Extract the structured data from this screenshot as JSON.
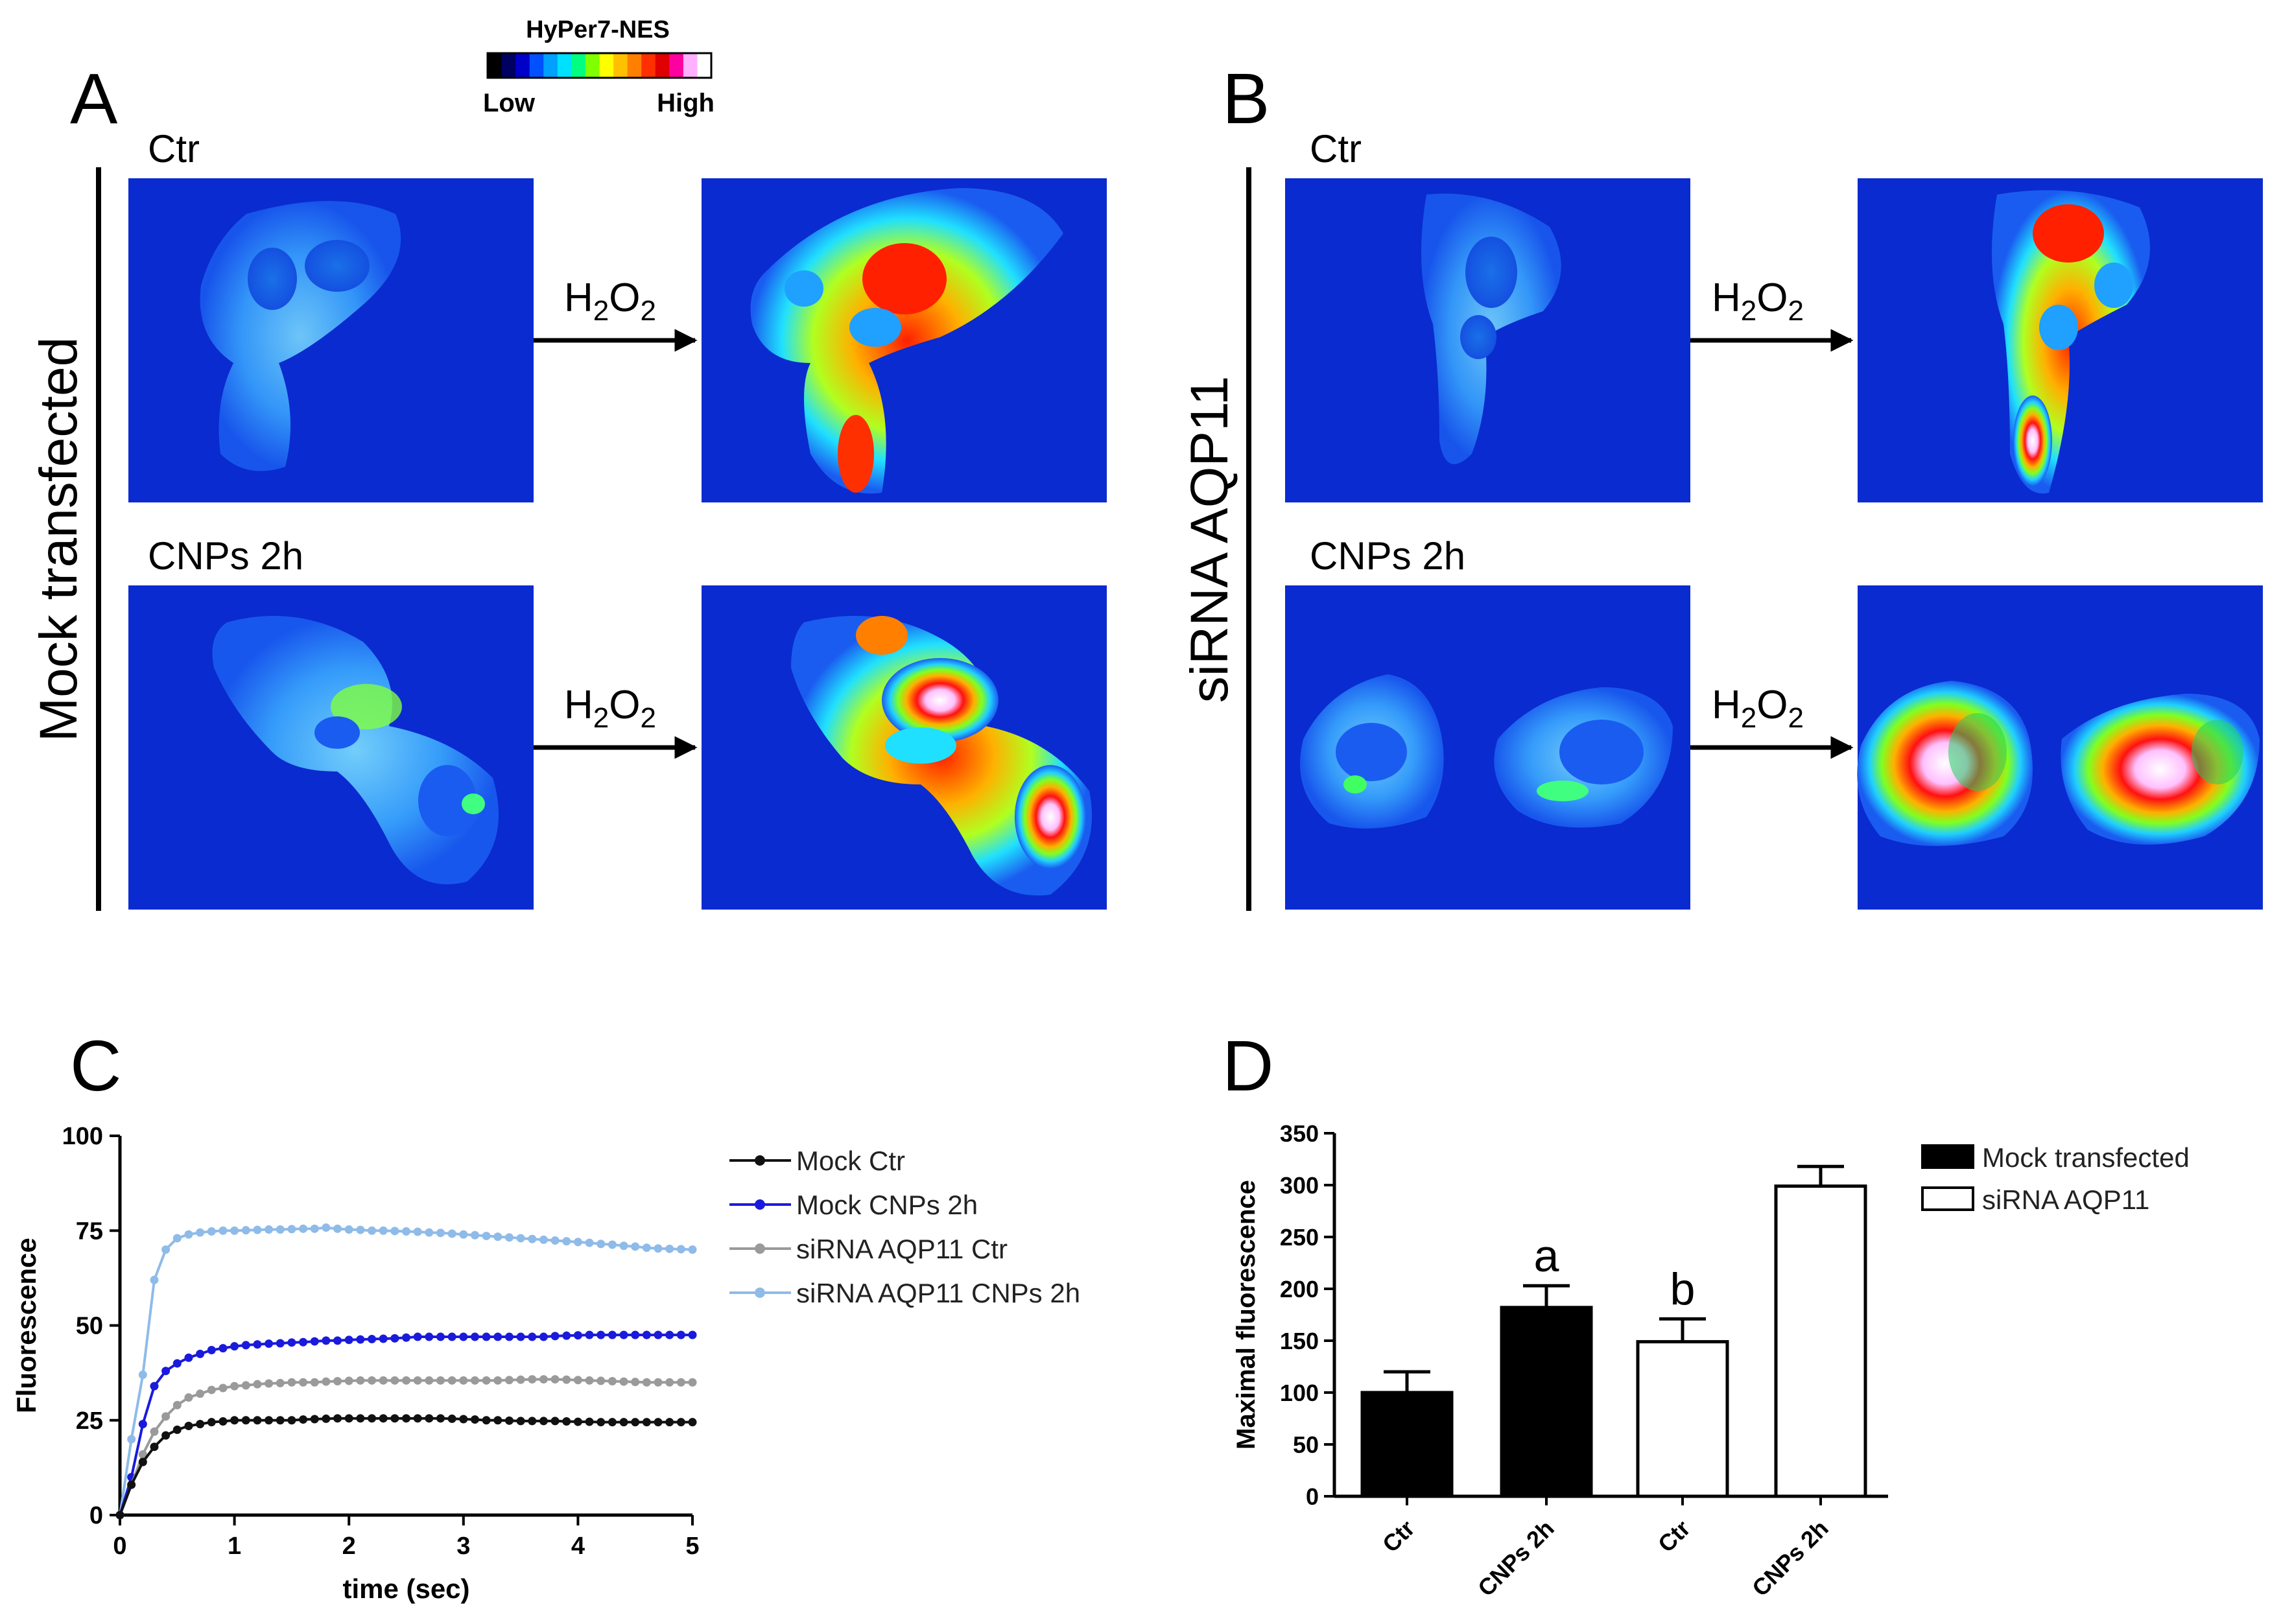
{
  "colorbar": {
    "title": "HyPer7-NES",
    "low": "Low",
    "high": "High",
    "colors": [
      "#000000",
      "#000060",
      "#0000c8",
      "#0050ff",
      "#00a0ff",
      "#00e0ff",
      "#00ff80",
      "#80ff00",
      "#ffff00",
      "#ffc000",
      "#ff8000",
      "#ff3000",
      "#e00000",
      "#ff00a0",
      "#ffb0ff",
      "#ffffff"
    ]
  },
  "panels": {
    "A": {
      "letter": "A",
      "side_label": "Mock transfected"
    },
    "B": {
      "letter": "B",
      "side_label": "siRNA AQP11"
    },
    "C": {
      "letter": "C"
    },
    "D": {
      "letter": "D"
    }
  },
  "rows": {
    "ctr": "Ctr",
    "cnps": "CNPs 2h"
  },
  "arrow_label": {
    "main": "H",
    "sub1": "2",
    "mid": "O",
    "sub2": "2"
  },
  "chart_data": [
    {
      "type": "line",
      "xlabel": "time (sec)",
      "ylabel": "Fluorescence",
      "xlim": [
        0,
        5
      ],
      "ylim": [
        0,
        100
      ],
      "xticks": [
        "0",
        "1",
        "2",
        "3",
        "4",
        "5"
      ],
      "yticks": [
        "0",
        "25",
        "50",
        "75",
        "100"
      ],
      "x": [
        0,
        0.1,
        0.2,
        0.3,
        0.4,
        0.5,
        0.6,
        0.7,
        0.8,
        0.9,
        1.0,
        1.1,
        1.2,
        1.3,
        1.4,
        1.5,
        1.6,
        1.7,
        1.8,
        1.9,
        2.0,
        2.1,
        2.2,
        2.3,
        2.4,
        2.5,
        2.6,
        2.7,
        2.8,
        2.9,
        3.0,
        3.1,
        3.2,
        3.3,
        3.4,
        3.5,
        3.6,
        3.7,
        3.8,
        3.9,
        4.0,
        4.1,
        4.2,
        4.3,
        4.4,
        4.5,
        4.6,
        4.7,
        4.8,
        4.9,
        5.0
      ],
      "series": [
        {
          "name": "Mock Ctr",
          "color": "#111111",
          "values": [
            0,
            8,
            14,
            18,
            21,
            22.5,
            23.5,
            24,
            24.5,
            24.7,
            25,
            25,
            25,
            25,
            25,
            25,
            25.2,
            25.3,
            25.4,
            25.5,
            25.5,
            25.5,
            25.5,
            25.5,
            25.5,
            25.5,
            25.5,
            25.5,
            25.5,
            25.4,
            25.3,
            25.2,
            25,
            25,
            24.9,
            24.8,
            24.8,
            24.8,
            24.8,
            24.7,
            24.6,
            24.6,
            24.5,
            24.5,
            24.5,
            24.5,
            24.5,
            24.5,
            24.5,
            24.5,
            24.5
          ]
        },
        {
          "name": "Mock CNPs 2h",
          "color": "#1a1adc",
          "values": [
            0,
            10,
            24,
            34,
            38,
            40,
            41.5,
            42.5,
            43.5,
            44,
            44.5,
            44.8,
            45,
            45.2,
            45.3,
            45.5,
            45.6,
            45.8,
            46,
            46,
            46.2,
            46.3,
            46.4,
            46.5,
            46.6,
            46.8,
            47,
            47,
            47,
            47,
            47,
            47,
            47,
            47,
            47,
            47,
            47,
            47,
            47.2,
            47.3,
            47.4,
            47.5,
            47.5,
            47.5,
            47.5,
            47.5,
            47.5,
            47.5,
            47.5,
            47.5,
            47.5
          ]
        },
        {
          "name": "siRNA AQP11 Ctr",
          "color": "#9a9a9a",
          "values": [
            0,
            8,
            16,
            22,
            26,
            29,
            31,
            32,
            33,
            33.5,
            34,
            34.2,
            34.5,
            34.7,
            34.8,
            35,
            35,
            35,
            35.2,
            35.3,
            35.4,
            35.5,
            35.5,
            35.5,
            35.5,
            35.5,
            35.5,
            35.5,
            35.5,
            35.5,
            35.5,
            35.5,
            35.5,
            35.5,
            35.6,
            35.7,
            35.8,
            35.8,
            35.8,
            35.7,
            35.6,
            35.5,
            35.4,
            35.3,
            35.2,
            35.1,
            35,
            35,
            35,
            35,
            35
          ]
        },
        {
          "name": "siRNA AQP11 CNPs 2h",
          "color": "#8fbbe8",
          "values": [
            0,
            20,
            37,
            62,
            70,
            73,
            74,
            74.5,
            74.8,
            75,
            75,
            75.1,
            75.2,
            75.3,
            75.3,
            75.4,
            75.5,
            75.5,
            75.8,
            75.5,
            75.3,
            75.2,
            75,
            75,
            74.9,
            74.8,
            74.7,
            74.5,
            74.4,
            74.2,
            74,
            73.8,
            73.6,
            73.4,
            73.2,
            73,
            72.8,
            72.6,
            72.4,
            72.2,
            72,
            71.8,
            71.5,
            71.3,
            71,
            70.8,
            70.5,
            70.3,
            70.2,
            70.1,
            70
          ]
        }
      ]
    },
    {
      "type": "bar",
      "ylabel": "Maximal fluorescence",
      "ylim": [
        0,
        350
      ],
      "yticks": [
        "0",
        "50",
        "100",
        "150",
        "200",
        "250",
        "300",
        "350"
      ],
      "categories": [
        "Ctr",
        "CNPs 2h",
        "Ctr",
        "CNPs 2h"
      ],
      "values": [
        100,
        182,
        149,
        299
      ],
      "errors": [
        20,
        21,
        22,
        19
      ],
      "groups": [
        "Mock transfected",
        "Mock transfected",
        "siRNA AQP11",
        "siRNA AQP11"
      ],
      "annotations": [
        "",
        "a",
        "b",
        ""
      ],
      "legend": [
        {
          "name": "Mock transfected",
          "fill": "#000000"
        },
        {
          "name": "siRNA AQP11",
          "fill": "#ffffff"
        }
      ]
    }
  ]
}
